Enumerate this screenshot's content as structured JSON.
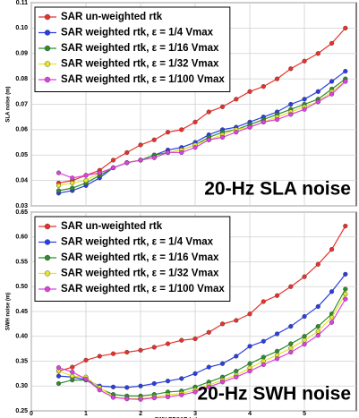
{
  "chart_data": [
    {
      "type": "line",
      "annotation": "20-Hz SLA noise",
      "y_label": "SLA noise (m)",
      "x": [
        0.5,
        0.75,
        1.0,
        1.25,
        1.5,
        1.75,
        2.0,
        2.25,
        2.5,
        2.75,
        3.0,
        3.25,
        3.5,
        3.75,
        4.0,
        4.25,
        4.5,
        4.75,
        5.0,
        5.25,
        5.5,
        5.75
      ],
      "series": [
        {
          "name": "SAR un-weighted rtk",
          "color": "#e8312a",
          "values": [
            0.039,
            0.04,
            0.042,
            0.044,
            0.048,
            0.051,
            0.054,
            0.056,
            0.059,
            0.06,
            0.063,
            0.067,
            0.069,
            0.072,
            0.075,
            0.077,
            0.08,
            0.084,
            0.087,
            0.09,
            0.094,
            0.1
          ]
        },
        {
          "name": "SAR weighted rtk, ε = 1/4 Vmax",
          "color": "#2a3fe0",
          "values": [
            0.035,
            0.036,
            0.038,
            0.041,
            0.045,
            0.047,
            0.048,
            0.05,
            0.052,
            0.053,
            0.055,
            0.058,
            0.06,
            0.061,
            0.063,
            0.065,
            0.067,
            0.07,
            0.072,
            0.075,
            0.079,
            0.083
          ]
        },
        {
          "name": "SAR weighted rtk, ε = 1/16 Vmax",
          "color": "#2d8c2d",
          "values": [
            0.036,
            0.037,
            0.039,
            0.042,
            0.045,
            0.047,
            0.048,
            0.05,
            0.051,
            0.052,
            0.054,
            0.057,
            0.059,
            0.06,
            0.062,
            0.064,
            0.066,
            0.068,
            0.07,
            0.072,
            0.076,
            0.08
          ]
        },
        {
          "name": "SAR weighted rtk, ε = 1/32 Vmax",
          "color": "#e5e52a",
          "values": [
            0.038,
            0.039,
            0.04,
            0.043,
            0.045,
            0.047,
            0.048,
            0.049,
            0.051,
            0.052,
            0.054,
            0.056,
            0.058,
            0.06,
            0.061,
            0.063,
            0.065,
            0.067,
            0.069,
            0.071,
            0.075,
            0.079
          ]
        },
        {
          "name": "SAR weighted rtk, ε = 1/100 Vmax",
          "color": "#e040e0",
          "values": [
            0.043,
            0.041,
            0.042,
            0.043,
            0.045,
            0.047,
            0.048,
            0.049,
            0.051,
            0.051,
            0.053,
            0.056,
            0.057,
            0.059,
            0.061,
            0.063,
            0.064,
            0.066,
            0.068,
            0.071,
            0.074,
            0.079
          ]
        }
      ],
      "xlim": [
        0,
        5.95
      ],
      "xticks": [
        0,
        1,
        2,
        3,
        4,
        5
      ],
      "xtick_labels": false,
      "ylim": [
        0.03,
        0.11
      ],
      "yticks": [
        0.03,
        0.04,
        0.05,
        0.06,
        0.07,
        0.08,
        0.09,
        {
          "value": 0.1,
          "label": "0.10"
        },
        0.11
      ],
      "grid": true,
      "legend": "upper left"
    },
    {
      "type": "line",
      "annotation": "20-Hz SWH noise",
      "y_label": "SWH noise (m)",
      "x_label": "SWH RDSAR (m)",
      "x": [
        0.5,
        0.75,
        1.0,
        1.25,
        1.5,
        1.75,
        2.0,
        2.25,
        2.5,
        2.75,
        3.0,
        3.25,
        3.5,
        3.75,
        4.0,
        4.25,
        4.5,
        4.75,
        5.0,
        5.25,
        5.5,
        5.75
      ],
      "series": [
        {
          "name": "SAR un-weighted rtk",
          "color": "#e8312a",
          "values": [
            0.33,
            0.338,
            0.352,
            0.36,
            0.365,
            0.368,
            0.372,
            0.378,
            0.385,
            0.392,
            0.395,
            0.408,
            0.425,
            0.432,
            0.445,
            0.47,
            0.482,
            0.5,
            0.52,
            0.545,
            0.575,
            0.622
          ]
        },
        {
          "name": "SAR weighted rtk, ε = 1/4 Vmax",
          "color": "#2a3fe0",
          "values": [
            0.32,
            0.318,
            0.313,
            0.3,
            0.298,
            0.297,
            0.3,
            0.305,
            0.31,
            0.315,
            0.325,
            0.338,
            0.345,
            0.36,
            0.38,
            0.39,
            0.405,
            0.42,
            0.44,
            0.46,
            0.49,
            0.525
          ]
        },
        {
          "name": "SAR weighted rtk, ε = 1/16 Vmax",
          "color": "#2d8c2d",
          "values": [
            0.305,
            0.312,
            0.312,
            0.295,
            0.283,
            0.28,
            0.28,
            0.283,
            0.288,
            0.29,
            0.298,
            0.308,
            0.318,
            0.33,
            0.345,
            0.358,
            0.37,
            0.385,
            0.4,
            0.42,
            0.445,
            0.495
          ]
        },
        {
          "name": "SAR weighted rtk, ε = 1/32 Vmax",
          "color": "#e5e52a",
          "values": [
            0.33,
            0.32,
            0.318,
            0.297,
            0.278,
            0.275,
            0.275,
            0.278,
            0.282,
            0.285,
            0.292,
            0.302,
            0.312,
            0.322,
            0.336,
            0.35,
            0.362,
            0.376,
            0.392,
            0.41,
            0.438,
            0.485
          ]
        },
        {
          "name": "SAR weighted rtk, ε = 1/100 Vmax",
          "color": "#e040e0",
          "values": [
            0.337,
            0.328,
            0.314,
            0.292,
            0.277,
            0.274,
            0.273,
            0.276,
            0.278,
            0.282,
            0.288,
            0.298,
            0.308,
            0.318,
            0.33,
            0.343,
            0.355,
            0.368,
            0.384,
            0.402,
            0.428,
            0.475
          ]
        }
      ],
      "xlim": [
        0,
        5.95
      ],
      "xticks": [
        0,
        1,
        2,
        3,
        4,
        5
      ],
      "xtick_labels": true,
      "ylim": [
        0.25,
        0.65
      ],
      "yticks": [
        0.25,
        {
          "value": 0.3,
          "label": "0.30"
        },
        0.35,
        {
          "value": 0.4,
          "label": "0.40"
        },
        0.45,
        {
          "value": 0.5,
          "label": "0.50"
        },
        0.55,
        {
          "value": 0.6,
          "label": "0.60"
        },
        0.65
      ],
      "grid": true,
      "legend": "upper left"
    }
  ]
}
